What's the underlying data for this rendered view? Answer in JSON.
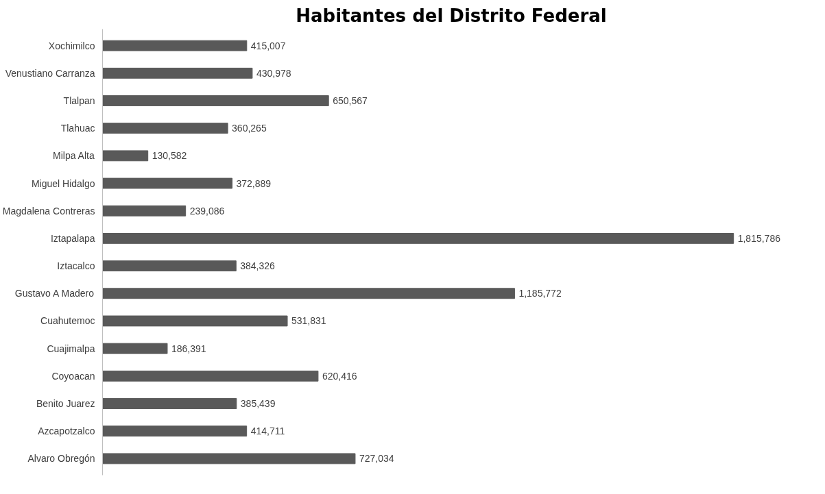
{
  "chart_data": {
    "type": "bar",
    "orientation": "horizontal",
    "title": "Habitantes  del Distrito Federal",
    "categories": [
      "Xochimilco",
      "Venustiano Carranza",
      "Tlalpan",
      "Tlahuac",
      "Milpa Alta",
      "Miguel Hidalgo",
      "Magdalena Contreras",
      "Iztapalapa",
      "Iztacalco",
      "Gustavo A Madero",
      "Cuahutemoc",
      "Cuajimalpa",
      "Coyoacan",
      "Benito Juarez",
      "Azcapotzalco",
      "Alvaro Obregón"
    ],
    "series": [
      {
        "color": "#595959",
        "values": [
          415007,
          430978,
          650567,
          360265,
          130582,
          372889,
          239086,
          1815786,
          384326,
          1185772,
          531831,
          186391,
          620416,
          385439,
          414711,
          727034
        ],
        "value_labels": [
          "415,007",
          "430,978",
          "650,567",
          "360,265",
          "130,582",
          "372,889",
          "239,086",
          "1,815,786",
          "384,326",
          "1,185,772",
          "531,831",
          "186,391",
          "620,416",
          "385,439",
          "414,711",
          "727,034"
        ]
      }
    ],
    "grid": false
  }
}
